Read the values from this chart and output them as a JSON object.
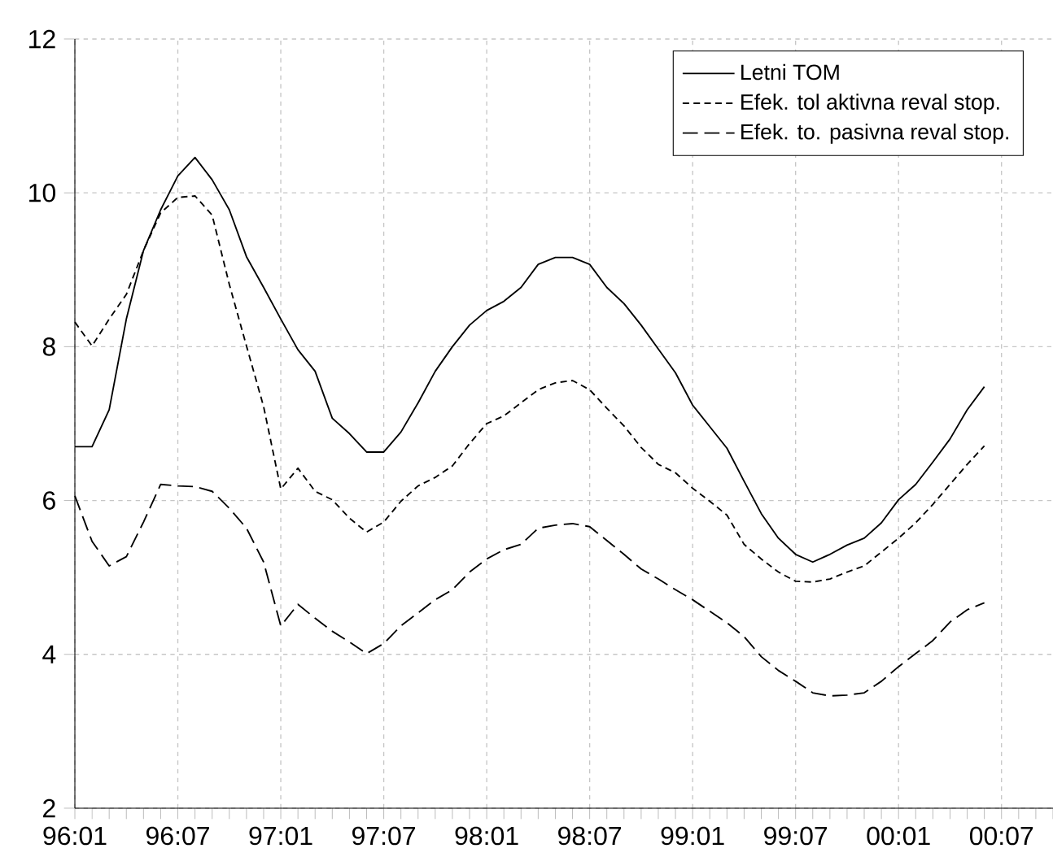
{
  "chart_data": {
    "type": "line",
    "categories": [
      "96:01",
      null,
      null,
      null,
      null,
      null,
      "96:07",
      null,
      null,
      null,
      null,
      null,
      "97:01",
      null,
      null,
      null,
      null,
      null,
      "97:07",
      null,
      null,
      null,
      null,
      null,
      "98:01",
      null,
      null,
      null,
      null,
      null,
      "98:07",
      null,
      null,
      null,
      null,
      null,
      "99:01",
      null,
      null,
      null,
      null,
      null,
      "99:07",
      null,
      null,
      null,
      null,
      null,
      "00:01",
      null,
      null,
      null,
      null,
      null,
      "00:07",
      null,
      null,
      null
    ],
    "series": [
      {
        "name": "Letni TOM",
        "color": "#000000",
        "line_style": "solid",
        "values": [
          6.7,
          6.7,
          7.18,
          8.36,
          9.25,
          9.78,
          10.22,
          10.46,
          10.17,
          9.78,
          9.17,
          8.77,
          8.36,
          7.96,
          7.68,
          7.07,
          6.87,
          6.63,
          6.63,
          6.89,
          7.27,
          7.68,
          8.0,
          8.28,
          8.47,
          8.59,
          8.77,
          9.07,
          9.16,
          9.16,
          9.07,
          8.77,
          8.56,
          8.28,
          7.97,
          7.66,
          7.24,
          6.96,
          6.68,
          6.25,
          5.83,
          5.51,
          5.3,
          5.2,
          5.3,
          5.42,
          5.51,
          5.71,
          6.01,
          6.21,
          6.5,
          6.8,
          7.18,
          7.48,
          null,
          null,
          null,
          null
        ]
      },
      {
        "name": "Efek. tol aktivna reval stop.",
        "color": "#000000",
        "line_style": "dashed",
        "values": [
          8.32,
          8.01,
          8.36,
          8.68,
          9.25,
          9.74,
          9.94,
          9.96,
          9.71,
          8.81,
          8.01,
          7.22,
          6.15,
          6.42,
          6.12,
          6.01,
          5.77,
          5.59,
          5.72,
          5.99,
          6.19,
          6.3,
          6.45,
          6.74,
          7.0,
          7.1,
          7.27,
          7.44,
          7.53,
          7.56,
          7.44,
          7.2,
          6.97,
          6.69,
          6.47,
          6.36,
          6.16,
          5.99,
          5.81,
          5.43,
          5.24,
          5.07,
          4.95,
          4.94,
          4.98,
          5.07,
          5.15,
          5.33,
          5.51,
          5.71,
          5.95,
          6.21,
          6.47,
          6.71,
          null,
          null,
          null,
          null
        ]
      },
      {
        "name": "Efek. to. pasivna reval stop.",
        "color": "#000000",
        "line_style": "long dashed",
        "values": [
          6.06,
          5.47,
          5.15,
          5.27,
          5.72,
          6.21,
          6.19,
          6.18,
          6.12,
          5.9,
          5.64,
          5.2,
          4.37,
          4.65,
          4.47,
          4.3,
          4.16,
          4.01,
          4.14,
          4.37,
          4.54,
          4.71,
          4.84,
          5.07,
          5.24,
          5.36,
          5.43,
          5.64,
          5.68,
          5.7,
          5.66,
          5.48,
          5.3,
          5.11,
          4.98,
          4.84,
          4.71,
          4.56,
          4.41,
          4.23,
          3.97,
          3.79,
          3.65,
          3.5,
          3.46,
          3.47,
          3.5,
          3.65,
          3.84,
          4.01,
          4.18,
          4.42,
          4.58,
          4.67,
          null,
          null,
          null,
          null
        ]
      }
    ],
    "ylim": [
      2,
      12
    ],
    "yticks": [
      2,
      4,
      6,
      8,
      10,
      12
    ],
    "grid": true,
    "legend": "top right",
    "marker": "none"
  }
}
